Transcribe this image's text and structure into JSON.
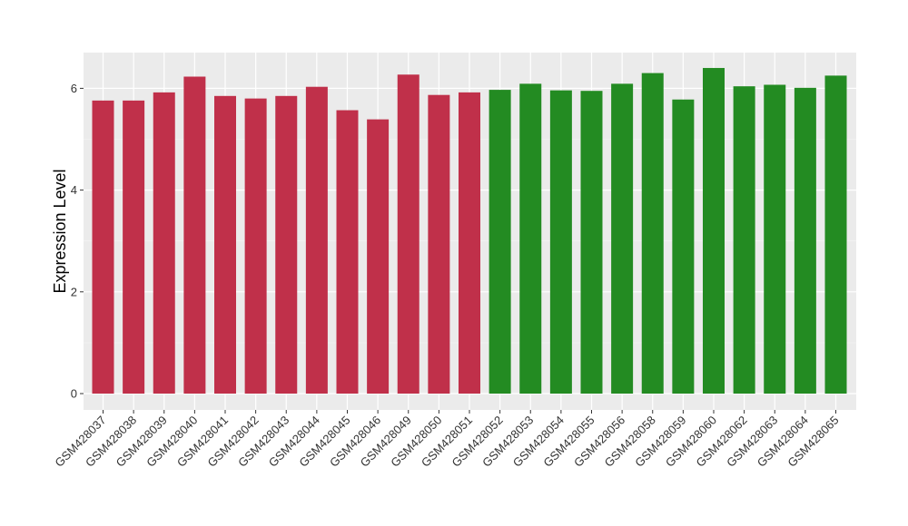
{
  "chart_data": {
    "type": "bar",
    "title": "",
    "xlabel": "",
    "ylabel": "Expression Level",
    "ylim": [
      0,
      6.65
    ],
    "yticks": [
      0,
      2,
      4,
      6
    ],
    "grid": true,
    "background": "#ebebeb",
    "categories": [
      "GSM428037",
      "GSM428038",
      "GSM428039",
      "GSM428040",
      "GSM428041",
      "GSM428042",
      "GSM428043",
      "GSM428044",
      "GSM428045",
      "GSM428046",
      "GSM428049",
      "GSM428050",
      "GSM428051",
      "GSM428052",
      "GSM428053",
      "GSM428054",
      "GSM428055",
      "GSM428056",
      "GSM428058",
      "GSM428059",
      "GSM428060",
      "GSM428062",
      "GSM428063",
      "GSM428064",
      "GSM428065"
    ],
    "values": [
      5.76,
      5.76,
      5.92,
      6.23,
      5.85,
      5.8,
      5.85,
      6.03,
      5.57,
      5.39,
      6.27,
      5.87,
      5.92,
      5.97,
      6.09,
      5.96,
      5.95,
      6.09,
      6.3,
      5.78,
      6.4,
      6.04,
      6.07,
      6.01,
      6.25
    ],
    "groups": [
      "red",
      "red",
      "red",
      "red",
      "red",
      "red",
      "red",
      "red",
      "red",
      "red",
      "red",
      "red",
      "red",
      "green",
      "green",
      "green",
      "green",
      "green",
      "green",
      "green",
      "green",
      "green",
      "green",
      "green",
      "green"
    ],
    "colors": {
      "red": "#c0304a",
      "green": "#238b22"
    }
  }
}
